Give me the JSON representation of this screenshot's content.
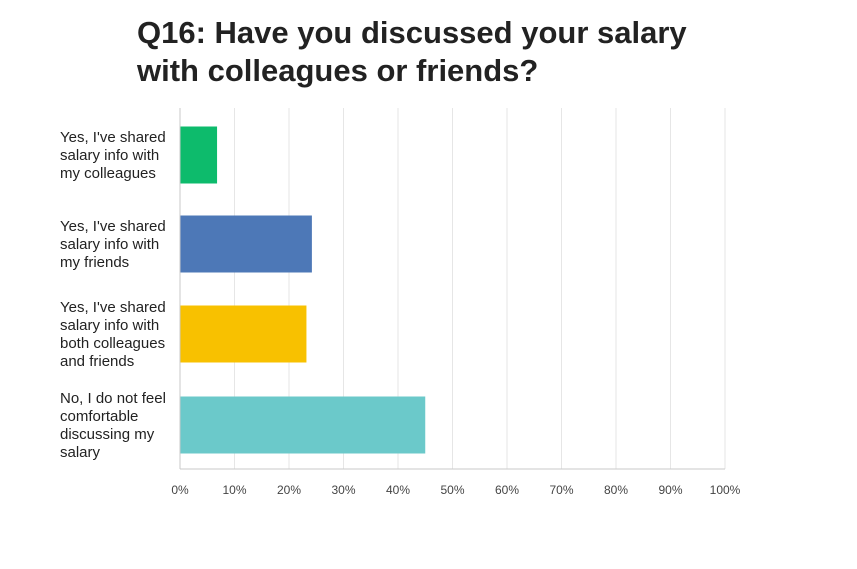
{
  "chart_data": {
    "type": "bar",
    "orientation": "horizontal",
    "title_lines": [
      "Q16: Have you discussed your salary",
      "with colleagues or friends?"
    ],
    "categories": [
      [
        "Yes, I've shared",
        "salary info with",
        "my colleagues"
      ],
      [
        "Yes, I've shared",
        "salary info with",
        "my friends"
      ],
      [
        "Yes, I've shared",
        "salary info with",
        "both colleagues",
        "and friends"
      ],
      [
        "No, I do not feel",
        "comfortable",
        "discussing my",
        "salary"
      ]
    ],
    "values": [
      6.8,
      24.2,
      23.2,
      45.0
    ],
    "colors": [
      "#0dbb6c",
      "#4d78b7",
      "#f8c100",
      "#6bc9ca"
    ],
    "x_ticks": [
      "0%",
      "10%",
      "20%",
      "30%",
      "40%",
      "50%",
      "60%",
      "70%",
      "80%",
      "90%",
      "100%"
    ],
    "xlim": [
      0,
      100
    ],
    "grid": true,
    "legend": "none"
  }
}
